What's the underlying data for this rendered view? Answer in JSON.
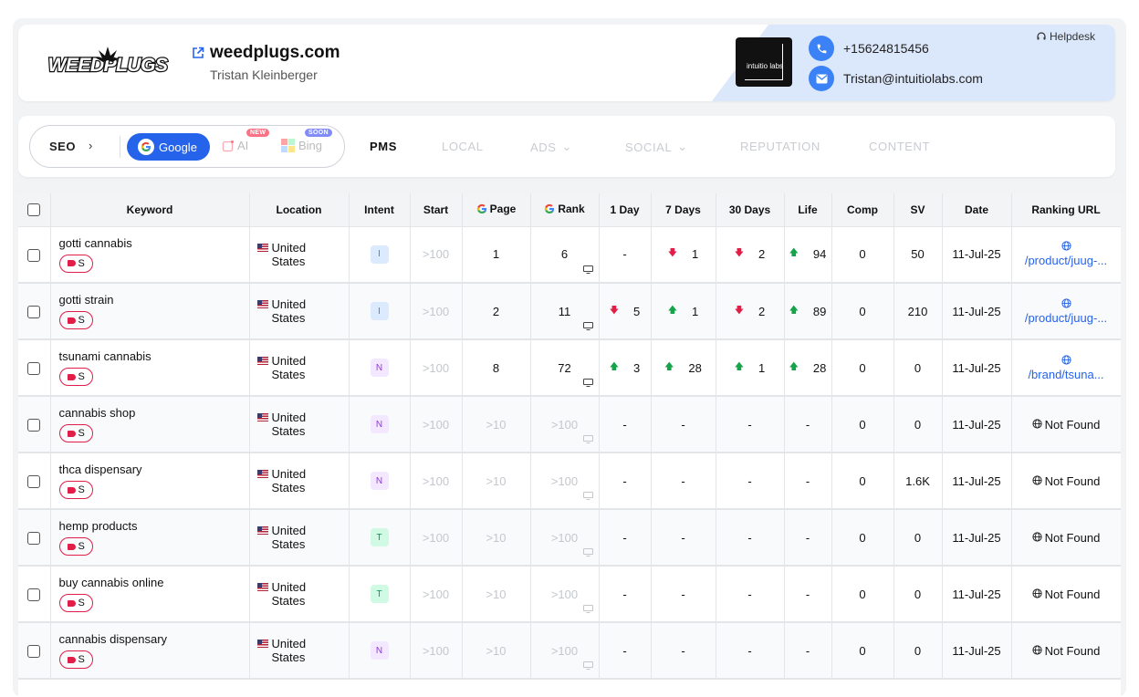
{
  "header": {
    "logo_text": "WEEDPLUGS",
    "domain": "weedplugs.com",
    "owner": "Tristan Kleinberger",
    "agency_logo_text": "intuitio labs",
    "phone": "+15624815456",
    "email": "Tristan@intuitiolabs.com",
    "helpdesk": "Helpdesk"
  },
  "nav": {
    "seo_label": "SEO",
    "engines": [
      {
        "label": "Google",
        "active": true
      },
      {
        "label": "AI",
        "badge": "NEW"
      },
      {
        "label": "Bing",
        "badge": "SOON"
      }
    ],
    "tabs": [
      {
        "label": "PMS",
        "active": true
      },
      {
        "label": "LOCAL"
      },
      {
        "label": "ADS",
        "dropdown": true
      },
      {
        "label": "SOCIAL",
        "dropdown": true
      },
      {
        "label": "REPUTATION"
      },
      {
        "label": "CONTENT"
      }
    ]
  },
  "table": {
    "columns": [
      "Keyword",
      "Location",
      "Intent",
      "Start",
      "Page",
      "Rank",
      "1 Day",
      "7 Days",
      "30 Days",
      "Life",
      "Comp",
      "SV",
      "Date",
      "Ranking URL"
    ],
    "rows": [
      {
        "keyword": "gotti cannabis",
        "tag": "S",
        "location": "United States",
        "intent": "I",
        "start": ">100",
        "page": "1",
        "rank": "6",
        "d1": "-",
        "d1_dir": "",
        "d7": "1",
        "d7_dir": "down",
        "d30": "2",
        "d30_dir": "down",
        "life": "94",
        "life_dir": "up",
        "comp": "0",
        "sv": "50",
        "date": "11-Jul-25",
        "url": "/product/juug-..."
      },
      {
        "keyword": "gotti strain",
        "tag": "S",
        "location": "United States",
        "intent": "I",
        "start": ">100",
        "page": "2",
        "rank": "11",
        "d1": "5",
        "d1_dir": "down",
        "d7": "1",
        "d7_dir": "up",
        "d30": "2",
        "d30_dir": "down",
        "life": "89",
        "life_dir": "up",
        "comp": "0",
        "sv": "210",
        "date": "11-Jul-25",
        "url": "/product/juug-..."
      },
      {
        "keyword": "tsunami cannabis",
        "tag": "S",
        "location": "United States",
        "intent": "N",
        "start": ">100",
        "page": "8",
        "rank": "72",
        "d1": "3",
        "d1_dir": "up",
        "d7": "28",
        "d7_dir": "up",
        "d30": "1",
        "d30_dir": "up",
        "life": "28",
        "life_dir": "up",
        "comp": "0",
        "sv": "0",
        "date": "11-Jul-25",
        "url": "/brand/tsuna..."
      },
      {
        "keyword": "cannabis shop",
        "tag": "S",
        "location": "United States",
        "intent": "N",
        "start": ">100",
        "page": ">10",
        "rank": ">100",
        "d1": "-",
        "d1_dir": "",
        "d7": "-",
        "d7_dir": "",
        "d30": "-",
        "d30_dir": "",
        "life": "-",
        "life_dir": "",
        "comp": "0",
        "sv": "0",
        "date": "11-Jul-25",
        "url": "Not Found"
      },
      {
        "keyword": "thca dispensary",
        "tag": "S",
        "location": "United States",
        "intent": "N",
        "start": ">100",
        "page": ">10",
        "rank": ">100",
        "d1": "-",
        "d1_dir": "",
        "d7": "-",
        "d7_dir": "",
        "d30": "-",
        "d30_dir": "",
        "life": "-",
        "life_dir": "",
        "comp": "0",
        "sv": "1.6K",
        "date": "11-Jul-25",
        "url": "Not Found"
      },
      {
        "keyword": "hemp products",
        "tag": "S",
        "location": "United States",
        "intent": "T",
        "start": ">100",
        "page": ">10",
        "rank": ">100",
        "d1": "-",
        "d1_dir": "",
        "d7": "-",
        "d7_dir": "",
        "d30": "-",
        "d30_dir": "",
        "life": "-",
        "life_dir": "",
        "comp": "0",
        "sv": "0",
        "date": "11-Jul-25",
        "url": "Not Found"
      },
      {
        "keyword": "buy cannabis online",
        "tag": "S",
        "location": "United States",
        "intent": "T",
        "start": ">100",
        "page": ">10",
        "rank": ">100",
        "d1": "-",
        "d1_dir": "",
        "d7": "-",
        "d7_dir": "",
        "d30": "-",
        "d30_dir": "",
        "life": "-",
        "life_dir": "",
        "comp": "0",
        "sv": "0",
        "date": "11-Jul-25",
        "url": "Not Found"
      },
      {
        "keyword": "cannabis dispensary",
        "tag": "S",
        "location": "United States",
        "intent": "N",
        "start": ">100",
        "page": ">10",
        "rank": ">100",
        "d1": "-",
        "d1_dir": "",
        "d7": "-",
        "d7_dir": "",
        "d30": "-",
        "d30_dir": "",
        "life": "-",
        "life_dir": "",
        "comp": "0",
        "sv": "0",
        "date": "11-Jul-25",
        "url": "Not Found"
      }
    ]
  },
  "colors": {
    "accent": "#2563eb",
    "up": "#16a34a",
    "down": "#e11d48",
    "intent_I_bg": "#dbeafe",
    "intent_I_fg": "#3b82f6",
    "intent_N_bg": "#f3e8ff",
    "intent_N_fg": "#9333ea",
    "intent_T_bg": "#d1fae5",
    "intent_T_fg": "#059669"
  }
}
